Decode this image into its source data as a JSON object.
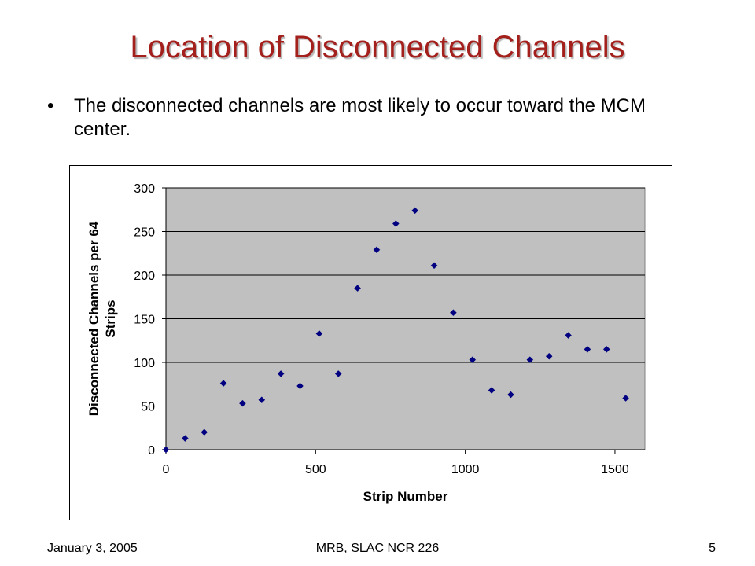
{
  "slide": {
    "title": "Location of Disconnected Channels",
    "bullet_mark": "•",
    "bullet": "The disconnected channels are most likely to occur toward the MCM center.",
    "footer_left": "January 3, 2005",
    "footer_center": "MRB, SLAC NCR 226",
    "footer_right": "5"
  },
  "colors": {
    "title": "#a3201c",
    "plot_area": "#c0c0c0",
    "marker": "#000080",
    "gridline": "#000000"
  },
  "chart_data": {
    "type": "scatter",
    "title": "",
    "xlabel": "Strip Number",
    "ylabel_lines": [
      "Disconnected Channels per 64",
      "Strips"
    ],
    "xlim": [
      0,
      1600
    ],
    "ylim": [
      0,
      300
    ],
    "xticks": [
      0,
      500,
      1000,
      1500
    ],
    "yticks": [
      0,
      50,
      100,
      150,
      200,
      250,
      300
    ],
    "grid": "horizontal major gridlines",
    "legend": "none",
    "marker": "diamond",
    "series": [
      {
        "x": [
          0,
          64,
          128,
          192,
          256,
          320,
          384,
          448,
          512,
          576,
          640,
          704,
          768,
          832,
          896,
          960,
          1024,
          1088,
          1152,
          1216,
          1280,
          1344,
          1408,
          1472,
          1536
        ],
        "y": [
          0,
          13,
          20,
          76,
          53,
          57,
          87,
          73,
          133,
          87,
          185,
          229,
          259,
          274,
          211,
          157,
          103,
          68,
          63,
          103,
          107,
          131,
          115,
          115,
          59
        ]
      }
    ]
  }
}
